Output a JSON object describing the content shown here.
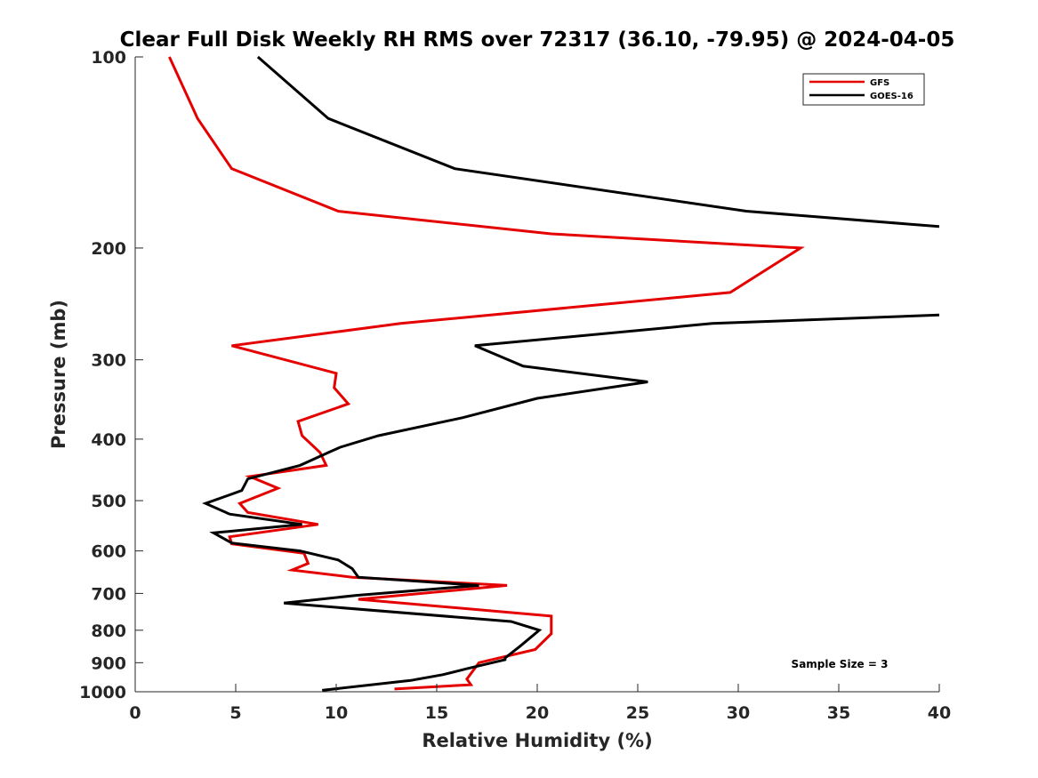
{
  "chart_data": {
    "type": "line",
    "title": "Clear Full Disk Weekly RH RMS over 72317 (36.10, -79.95) @ 2024-04-05",
    "xlabel": "Relative Humidity (%)",
    "ylabel": "Pressure (mb)",
    "xlim": [
      0,
      40
    ],
    "ylim": [
      100,
      1000
    ],
    "yscale": "log",
    "y_reversed": true,
    "xticks": [
      0,
      5,
      10,
      15,
      20,
      25,
      30,
      35,
      40
    ],
    "yticks": [
      100,
      200,
      300,
      400,
      500,
      600,
      700,
      800,
      900,
      1000
    ],
    "grid": false,
    "legend_position": "top-right",
    "annotation": "Sample Size = 3",
    "series": [
      {
        "name": "GFS",
        "color": "#e50000",
        "points": [
          [
            1.7,
            100
          ],
          [
            3.1,
            125
          ],
          [
            4.8,
            150
          ],
          [
            10.1,
            175
          ],
          [
            20.7,
            190
          ],
          [
            33.1,
            200
          ],
          [
            29.6,
            235
          ],
          [
            13.2,
            263
          ],
          [
            4.8,
            285
          ],
          [
            10.0,
            315
          ],
          [
            9.9,
            332
          ],
          [
            10.6,
            352
          ],
          [
            8.1,
            375
          ],
          [
            8.3,
            395
          ],
          [
            9.2,
            420
          ],
          [
            9.5,
            440
          ],
          [
            5.7,
            458
          ],
          [
            7.1,
            478
          ],
          [
            5.2,
            505
          ],
          [
            5.6,
            522
          ],
          [
            9.1,
            545
          ],
          [
            4.7,
            570
          ],
          [
            4.8,
            585
          ],
          [
            8.4,
            605
          ],
          [
            8.6,
            628
          ],
          [
            7.8,
            643
          ],
          [
            10.8,
            660
          ],
          [
            18.5,
            680
          ],
          [
            11.1,
            715
          ],
          [
            20.7,
            760
          ],
          [
            20.7,
            810
          ],
          [
            19.9,
            858
          ],
          [
            17.1,
            900
          ],
          [
            16.5,
            955
          ],
          [
            16.7,
            975
          ],
          [
            12.9,
            990
          ]
        ]
      },
      {
        "name": "GOES-16",
        "color": "#000000",
        "points": [
          [
            6.1,
            100
          ],
          [
            9.6,
            125
          ],
          [
            15.9,
            150
          ],
          [
            30.4,
            175
          ],
          [
            40.0,
            185
          ],
          [
            null,
            240
          ],
          [
            40.0,
            255
          ],
          [
            28.7,
            263
          ],
          [
            16.9,
            285
          ],
          [
            19.3,
            307
          ],
          [
            25.5,
            325
          ],
          [
            20.0,
            345
          ],
          [
            16.3,
            370
          ],
          [
            12.1,
            395
          ],
          [
            10.2,
            412
          ],
          [
            9.6,
            420
          ],
          [
            8.2,
            440
          ],
          [
            5.6,
            462
          ],
          [
            5.3,
            482
          ],
          [
            3.5,
            505
          ],
          [
            4.7,
            525
          ],
          [
            8.3,
            545
          ],
          [
            3.9,
            562
          ],
          [
            4.8,
            583
          ],
          [
            8.2,
            600
          ],
          [
            10.1,
            620
          ],
          [
            10.8,
            640
          ],
          [
            11.1,
            660
          ],
          [
            17.1,
            680
          ],
          [
            11.0,
            705
          ],
          [
            7.4,
            725
          ],
          [
            18.7,
            775
          ],
          [
            20.1,
            800
          ],
          [
            19.2,
            845
          ],
          [
            18.4,
            885
          ],
          [
            18.4,
            890
          ],
          [
            16.5,
            920
          ],
          [
            15.3,
            940
          ],
          [
            13.7,
            960
          ],
          [
            9.3,
            995
          ]
        ]
      }
    ]
  }
}
